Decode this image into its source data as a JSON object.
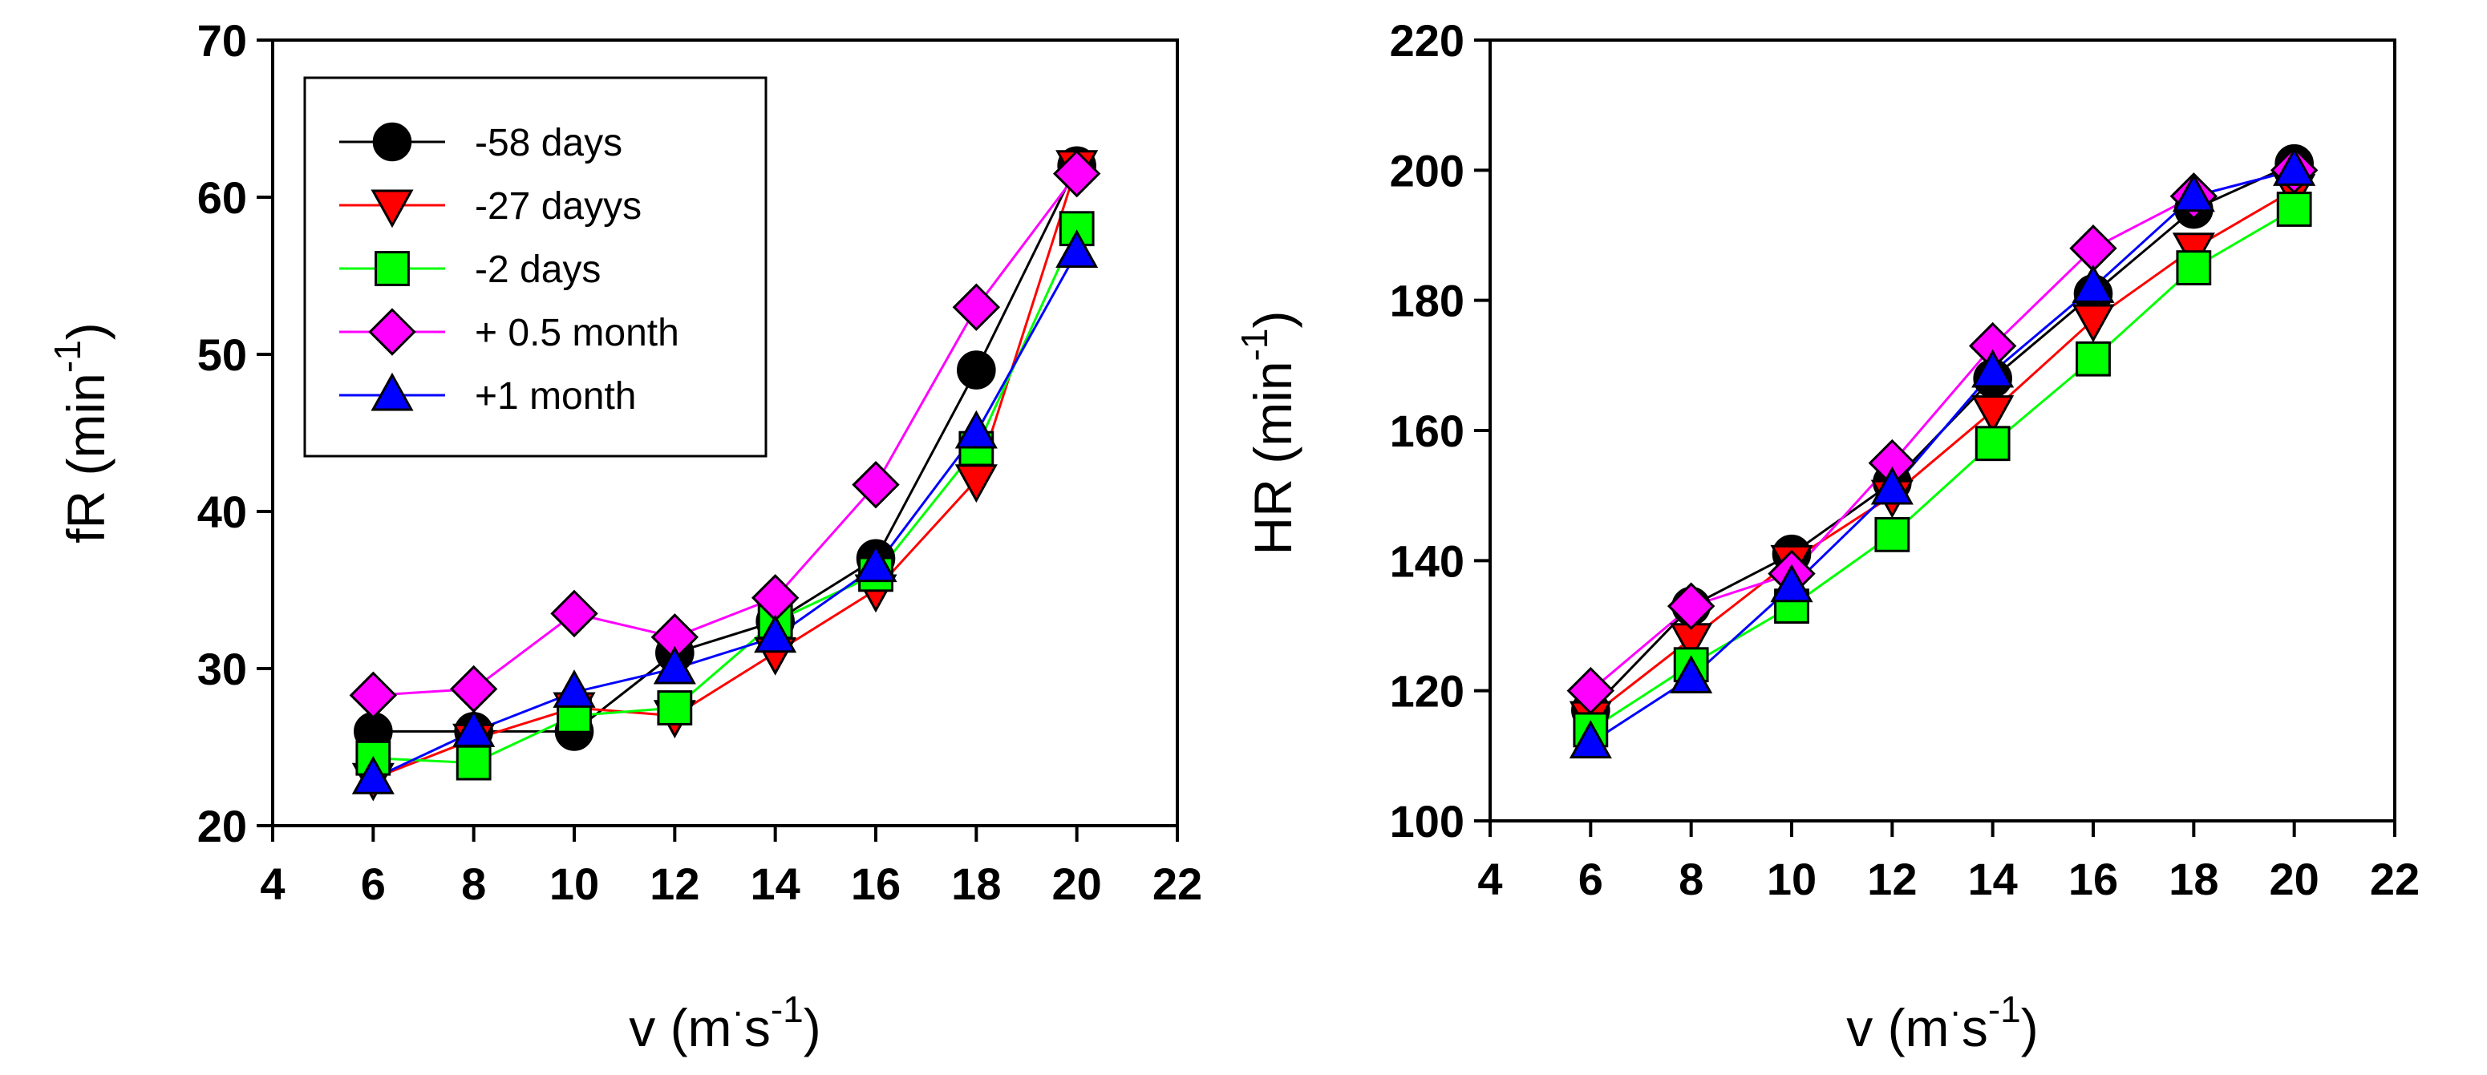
{
  "chart_data": [
    {
      "type": "line",
      "id": "fr",
      "ylabel_main": "fR (min",
      "ylabel_sup": "-1",
      "ylabel_close": ")",
      "xlabel_main": "v (m",
      "xlabel_dot": "·",
      "xlabel_s": "s",
      "xlabel_sup": "-1",
      "xlabel_close": ")",
      "xlim": [
        4,
        22
      ],
      "ylim": [
        20,
        70
      ],
      "xticks": [
        4,
        6,
        8,
        10,
        12,
        14,
        16,
        18,
        20,
        22
      ],
      "yticks": [
        20,
        30,
        40,
        50,
        60,
        70
      ],
      "legend": true,
      "legend_position": "top-left",
      "x": [
        6,
        8,
        10,
        12,
        14,
        16,
        18,
        20
      ],
      "series": [
        {
          "name": "-58 days",
          "marker": "circle",
          "color": "#000000",
          "line_color": "#000000",
          "values": [
            26,
            26,
            26,
            31,
            33,
            37,
            49,
            62
          ]
        },
        {
          "name": "-27 dayys",
          "marker": "triangle-down",
          "color": "#ff0000",
          "line_color": "#ff0000",
          "values": [
            23,
            25.5,
            27.5,
            27,
            31,
            35,
            42,
            62
          ]
        },
        {
          "name": "-2 days",
          "marker": "square",
          "color": "#00ff00",
          "line_color": "#00ff00",
          "values": [
            24.3,
            24,
            27,
            27.5,
            33,
            36,
            44,
            58
          ]
        },
        {
          "name": "+ 0.5 month",
          "marker": "diamond",
          "color": "#ff00ff",
          "line_color": "#ff00ff",
          "values": [
            28.3,
            28.7,
            33.5,
            32,
            34.5,
            41.7,
            53,
            61.5
          ]
        },
        {
          "name": "+1 month",
          "marker": "triangle-up",
          "color": "#0000ff",
          "line_color": "#0000ff",
          "values": [
            23,
            26,
            28.5,
            30,
            32,
            36.5,
            45,
            56.5
          ]
        }
      ]
    },
    {
      "type": "line",
      "id": "hr",
      "ylabel_main": "HR (min",
      "ylabel_sup": "-1",
      "ylabel_close": ")",
      "xlabel_main": "v (m",
      "xlabel_dot": "·",
      "xlabel_s": "s",
      "xlabel_sup": "-1",
      "xlabel_close": ")",
      "xlim": [
        4,
        22
      ],
      "ylim": [
        100,
        220
      ],
      "xticks": [
        4,
        6,
        8,
        10,
        12,
        14,
        16,
        18,
        20,
        22
      ],
      "yticks": [
        100,
        120,
        140,
        160,
        180,
        200,
        220
      ],
      "legend": false,
      "x": [
        6,
        8,
        10,
        12,
        14,
        16,
        18,
        20
      ],
      "series": [
        {
          "name": "-58 days",
          "marker": "circle",
          "color": "#000000",
          "line_color": "#000000",
          "values": [
            117,
            133,
            141,
            152,
            168,
            181,
            194,
            201
          ]
        },
        {
          "name": "-27 dayys",
          "marker": "triangle-down",
          "color": "#ff0000",
          "line_color": "#ff0000",
          "values": [
            116,
            128,
            140,
            150,
            163,
            177,
            188,
            197
          ]
        },
        {
          "name": "-2 days",
          "marker": "square",
          "color": "#00ff00",
          "line_color": "#00ff00",
          "values": [
            114,
            124,
            133,
            144,
            158,
            171,
            185,
            194
          ]
        },
        {
          "name": "+ 0.5 month",
          "marker": "diamond",
          "color": "#ff00ff",
          "line_color": "#ff00ff",
          "values": [
            120,
            133,
            138,
            155,
            173,
            188,
            196,
            200
          ]
        },
        {
          "name": "+1 month",
          "marker": "triangle-up",
          "color": "#0000ff",
          "line_color": "#0000ff",
          "values": [
            112,
            122,
            136,
            151,
            169,
            182,
            196,
            200
          ]
        }
      ]
    }
  ]
}
